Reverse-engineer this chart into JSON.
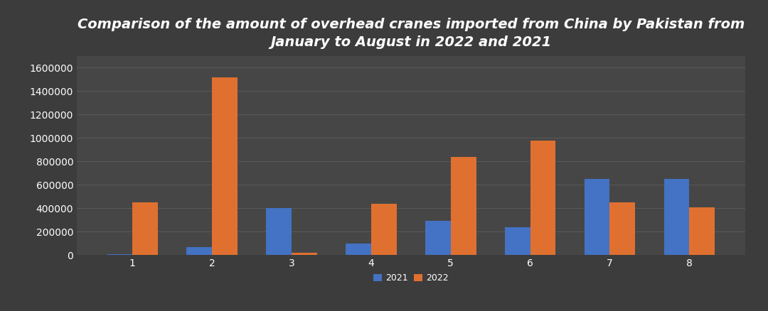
{
  "title": "Comparison of the amount of overhead cranes imported from China by Pakistan from\nJanuary to August in 2022 and 2021",
  "months": [
    "1",
    "2",
    "3",
    "4",
    "5",
    "6",
    "7",
    "8"
  ],
  "values_2021": [
    10000,
    70000,
    400000,
    100000,
    290000,
    240000,
    650000,
    650000
  ],
  "values_2022": [
    450000,
    1520000,
    20000,
    440000,
    840000,
    980000,
    450000,
    410000
  ],
  "color_2021": "#4472c4",
  "color_2022": "#e07030",
  "bg_color": "#3c3c3c",
  "axes_bg_color": "#464646",
  "grid_color": "#5a5a5a",
  "text_color": "#ffffff",
  "ylim": [
    0,
    1700000
  ],
  "yticks": [
    0,
    200000,
    400000,
    600000,
    800000,
    1000000,
    1200000,
    1400000,
    1600000
  ],
  "bar_width": 0.32,
  "legend_labels": [
    "2021",
    "2022"
  ],
  "title_fontsize": 14,
  "tick_fontsize": 10,
  "legend_fontsize": 9
}
